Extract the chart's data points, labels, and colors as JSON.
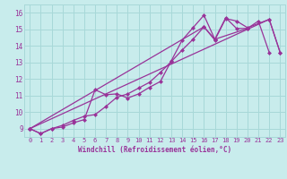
{
  "bg_color": "#c8ecec",
  "grid_color": "#a8d8d8",
  "line_color": "#993399",
  "xlabel": "Windchill (Refroidissement éolien,°C)",
  "xlim": [
    -0.5,
    23.5
  ],
  "ylim": [
    8.5,
    16.5
  ],
  "xticks": [
    0,
    1,
    2,
    3,
    4,
    5,
    6,
    7,
    8,
    9,
    10,
    11,
    12,
    13,
    14,
    15,
    16,
    17,
    18,
    19,
    20,
    21,
    22,
    23
  ],
  "yticks": [
    9,
    10,
    11,
    12,
    13,
    14,
    15,
    16
  ],
  "line1_x": [
    0,
    1,
    2,
    3,
    4,
    5,
    6,
    7,
    8,
    9,
    10,
    11,
    12,
    13,
    14,
    15,
    16,
    17,
    18,
    19,
    20
  ],
  "line1_y": [
    9.0,
    8.7,
    9.0,
    9.1,
    9.35,
    9.55,
    11.35,
    11.05,
    11.1,
    10.85,
    11.1,
    11.5,
    11.85,
    13.1,
    14.35,
    15.1,
    15.85,
    14.4,
    15.7,
    15.05,
    15.05
  ],
  "line2_x": [
    0,
    1,
    2,
    3,
    4,
    5,
    6,
    7,
    8,
    9,
    10,
    11,
    12,
    13,
    14,
    15,
    16,
    17,
    18,
    19,
    20,
    22,
    23
  ],
  "line2_y": [
    9.0,
    8.7,
    9.0,
    9.2,
    9.5,
    9.75,
    9.85,
    10.35,
    10.9,
    11.1,
    11.45,
    11.8,
    12.4,
    13.05,
    13.75,
    14.4,
    15.15,
    14.35,
    15.65,
    15.5,
    15.1,
    15.6,
    13.6
  ],
  "line3_x": [
    0,
    16,
    17,
    20,
    21,
    22
  ],
  "line3_y": [
    9.0,
    15.15,
    14.4,
    15.05,
    15.5,
    13.6
  ],
  "line4_x": [
    0,
    22,
    23
  ],
  "line4_y": [
    9.0,
    15.6,
    13.6
  ]
}
